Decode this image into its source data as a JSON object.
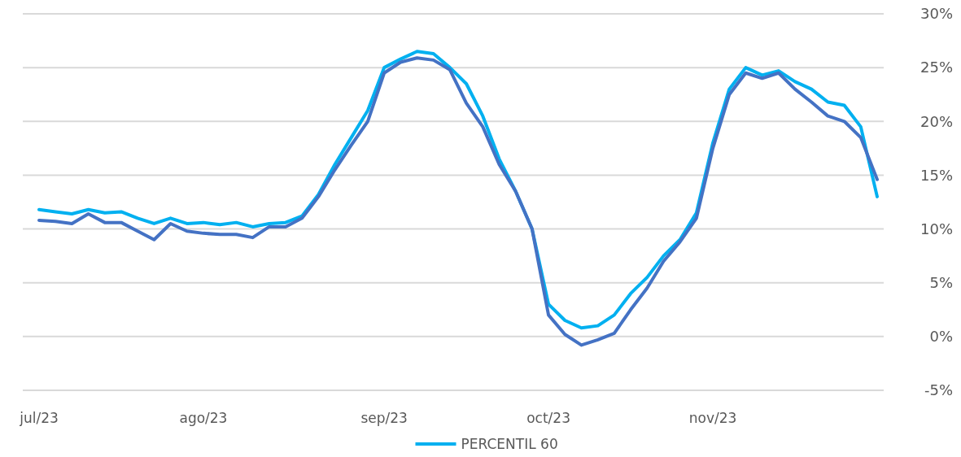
{
  "chart_data": {
    "type": "line",
    "categories": [
      "jul/23",
      null,
      null,
      null,
      null,
      null,
      null,
      null,
      null,
      null,
      "ago/23",
      null,
      null,
      null,
      null,
      null,
      null,
      null,
      null,
      null,
      null,
      "sep/23",
      null,
      null,
      null,
      null,
      null,
      null,
      null,
      null,
      null,
      "oct/23",
      null,
      null,
      null,
      null,
      null,
      null,
      null,
      null,
      null,
      "nov/23",
      null,
      null,
      null,
      null,
      null,
      null,
      null,
      null,
      null,
      null
    ],
    "series": [
      {
        "name": "PERCENTIL 60",
        "color": "#00b0f0",
        "values": [
          11.8,
          11.6,
          11.4,
          11.8,
          11.5,
          11.6,
          11.0,
          10.5,
          11.0,
          10.5,
          10.6,
          10.4,
          10.6,
          10.2,
          10.5,
          10.6,
          11.2,
          13.2,
          16.0,
          18.5,
          21.0,
          25.0,
          25.8,
          26.5,
          26.3,
          25.0,
          23.5,
          20.5,
          16.5,
          13.5,
          10.0,
          3.0,
          1.5,
          0.8,
          1.0,
          2.0,
          4.0,
          5.5,
          7.5,
          9.0,
          11.5,
          18.0,
          23.0,
          25.0,
          24.3,
          24.7,
          23.7,
          23.0,
          21.8,
          21.5,
          19.5,
          13.0
        ]
      },
      {
        "color": "#4472c4",
        "values": [
          10.8,
          10.7,
          10.5,
          11.4,
          10.6,
          10.6,
          9.8,
          9.0,
          10.5,
          9.8,
          9.6,
          9.5,
          9.5,
          9.2,
          10.2,
          10.2,
          11.0,
          13.0,
          15.5,
          17.8,
          20.0,
          24.5,
          25.5,
          25.9,
          25.7,
          24.8,
          21.7,
          19.5,
          16.0,
          13.5,
          10.0,
          2.0,
          0.2,
          -0.8,
          -0.3,
          0.3,
          2.5,
          4.5,
          7.0,
          8.8,
          11.0,
          17.5,
          22.5,
          24.5,
          24.0,
          24.5,
          23.0,
          21.8,
          20.5,
          20.0,
          18.5,
          14.6
        ]
      }
    ],
    "ylim": [
      -5,
      30
    ],
    "yticks": [
      {
        "value": -5,
        "label": "-5%"
      },
      {
        "value": 0,
        "label": "0%"
      },
      {
        "value": 5,
        "label": "5%"
      },
      {
        "value": 10,
        "label": "10%"
      },
      {
        "value": 15,
        "label": "15%"
      },
      {
        "value": 20,
        "label": "20%"
      },
      {
        "value": 25,
        "label": "25%"
      },
      {
        "value": 30,
        "label": "30%"
      }
    ],
    "grid": "y",
    "legend": "bottom",
    "marker": "none",
    "line_style": "solid"
  }
}
